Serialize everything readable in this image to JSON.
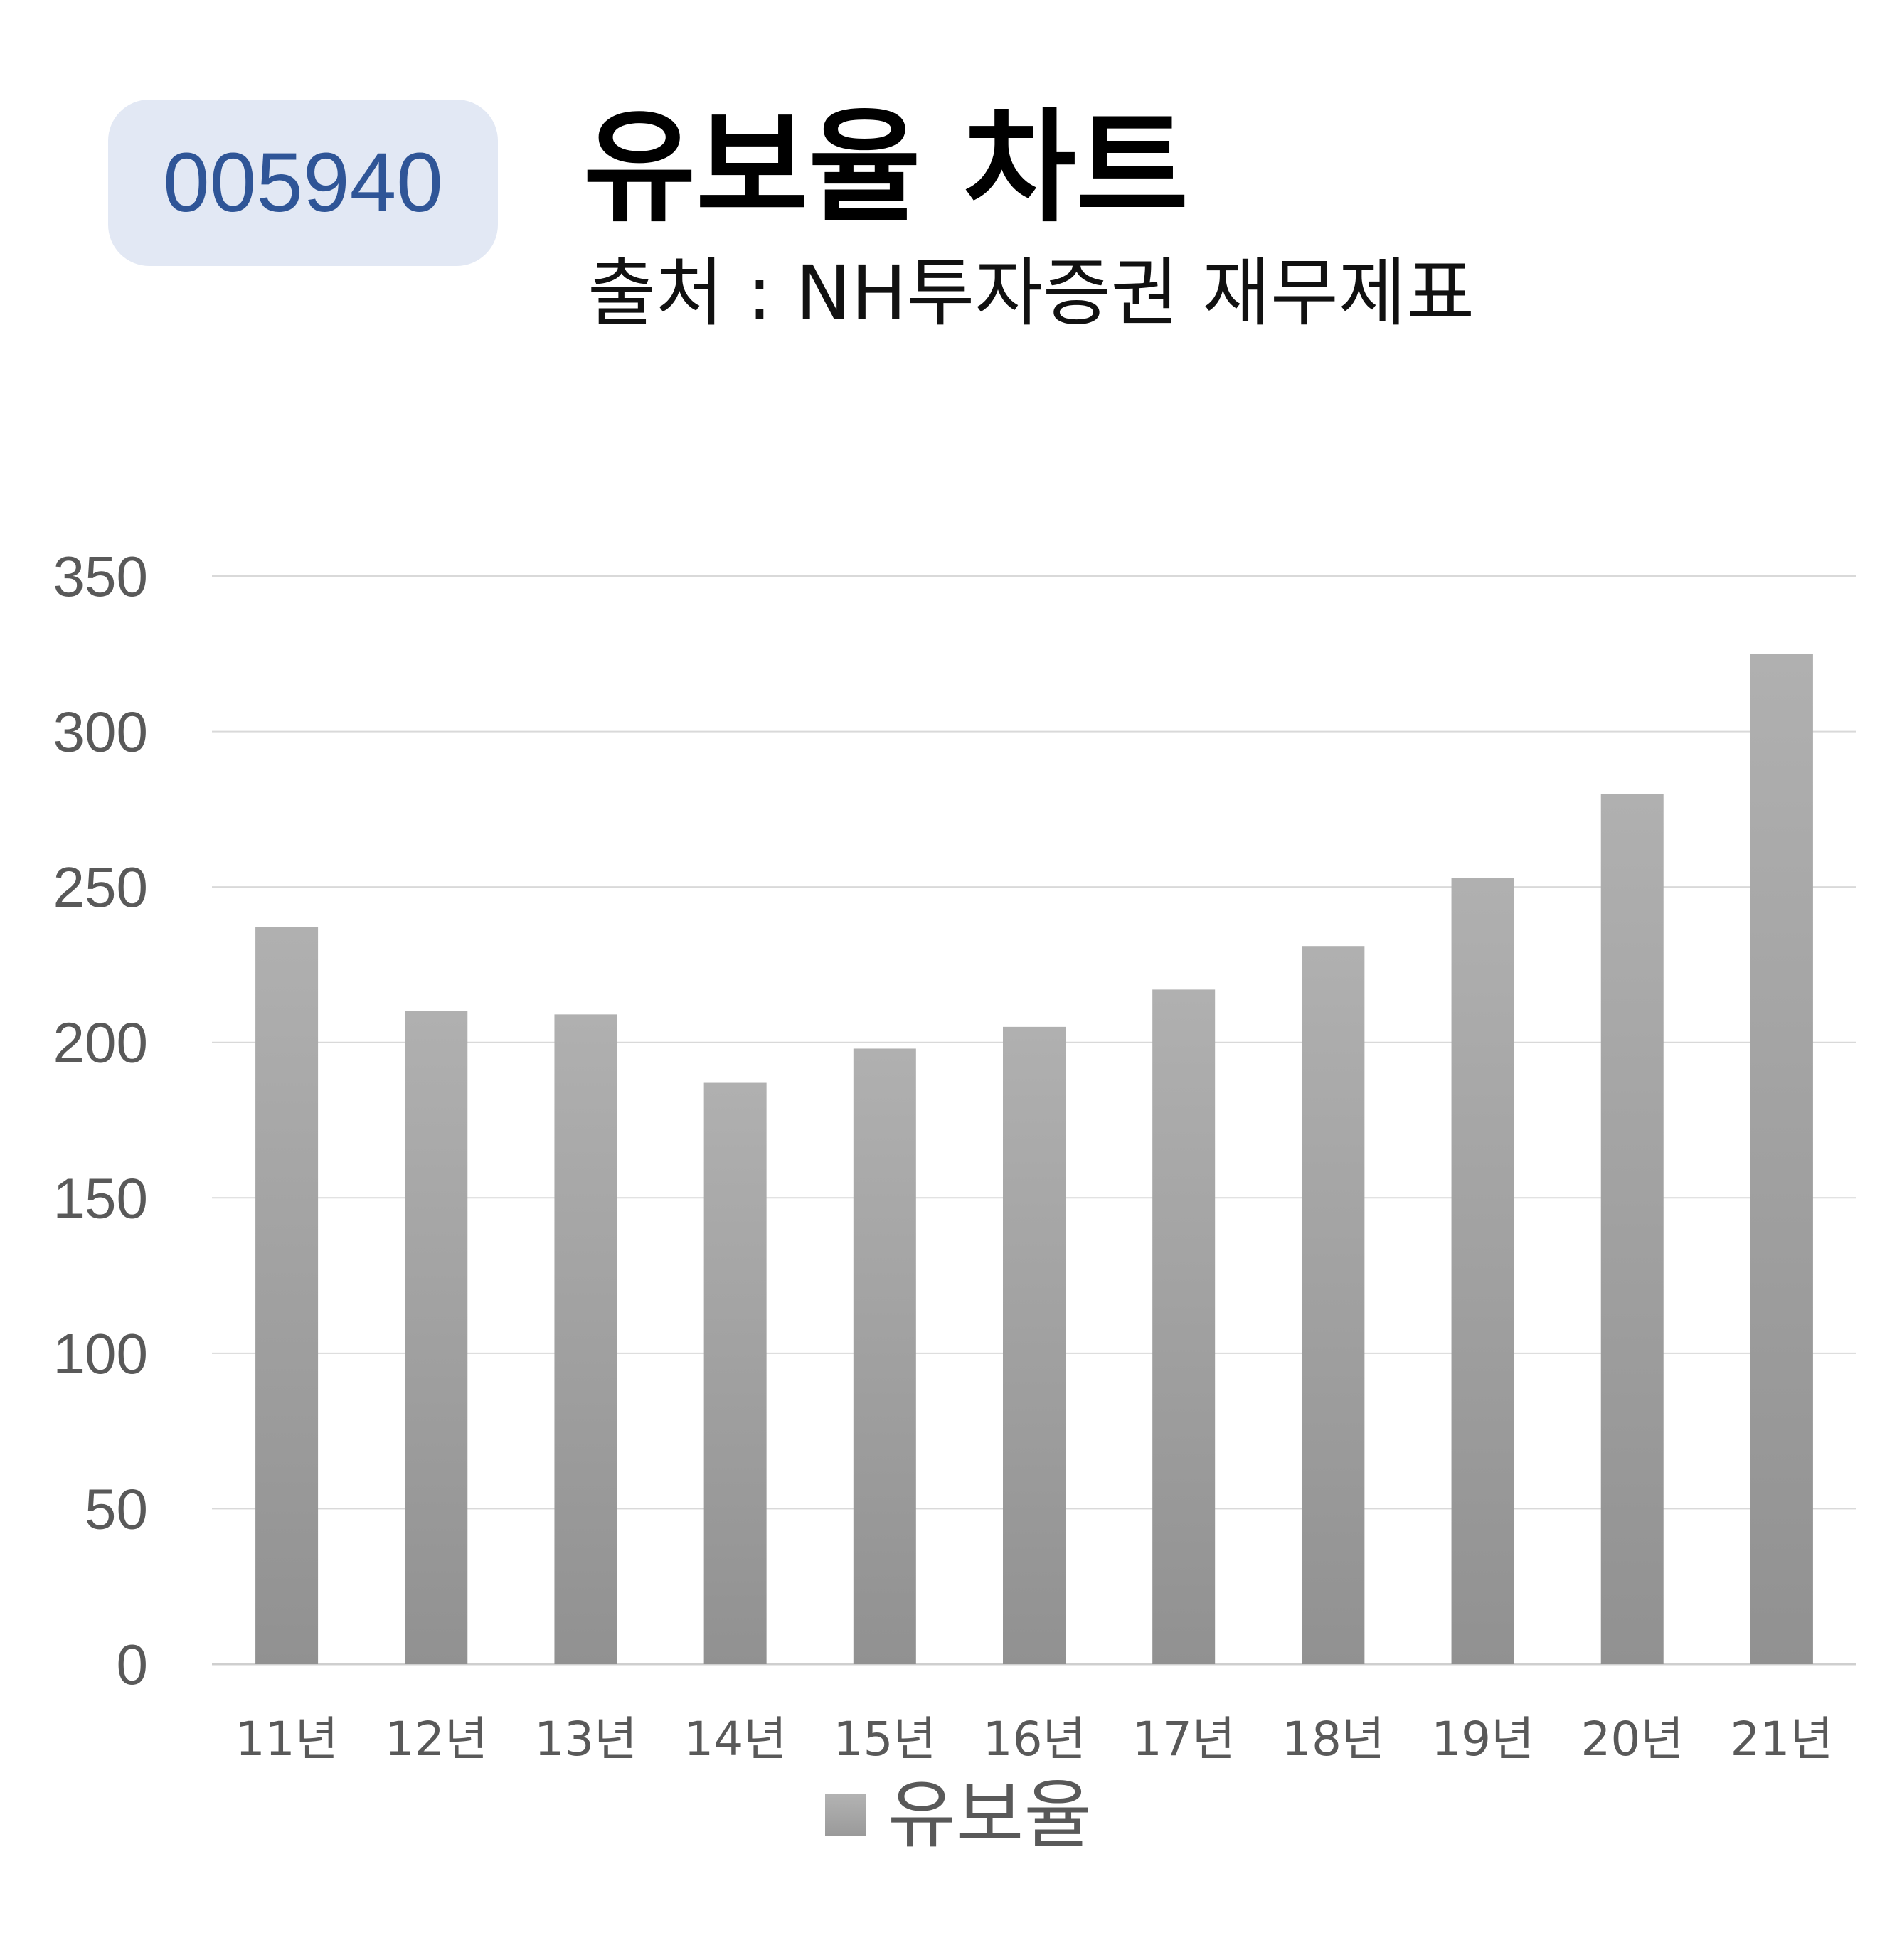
{
  "badge": {
    "code": "005940"
  },
  "header": {
    "title": "유보율 차트",
    "subtitle": "출처 : NH투자증권 재무제표"
  },
  "colors": {
    "bar_top": "#b0b0b0",
    "bar_bottom": "#919191",
    "grid": "#d9d9d9",
    "axis_text": "#595959",
    "badge_bg": "#e2e8f4",
    "badge_text": "#2f5597"
  },
  "chart_data": {
    "type": "bar",
    "title": "",
    "xlabel": "",
    "ylabel": "",
    "categories": [
      "11년",
      "12년",
      "13년",
      "14년",
      "15년",
      "16년",
      "17년",
      "18년",
      "19년",
      "20년",
      "21년"
    ],
    "series": [
      {
        "name": "유보율",
        "values": [
          237,
          210,
          209,
          187,
          198,
          205,
          217,
          231,
          253,
          280,
          325
        ]
      }
    ],
    "ylim": [
      0,
      350
    ],
    "yticks": [
      "0",
      "50",
      "100",
      "150",
      "200",
      "250",
      "300",
      "350"
    ],
    "grid": true,
    "legend": "bottom"
  }
}
